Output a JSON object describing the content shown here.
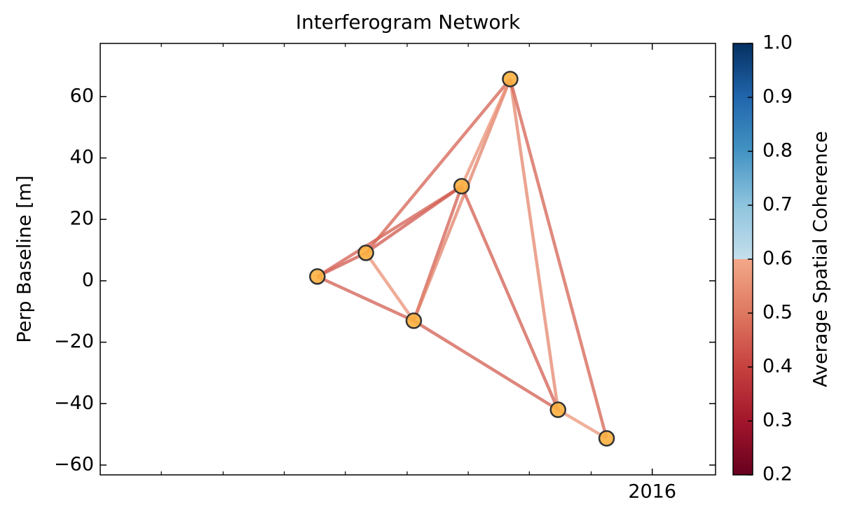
{
  "chart_data": {
    "type": "network",
    "title": "Interferogram Network",
    "ylabel": "Perp Baseline [m]",
    "colorbar_label": "Average Spatial Coherence",
    "nodes": {
      "x": [
        2015.545,
        2015.611,
        2015.676,
        2015.741,
        2015.807,
        2015.872,
        2015.938
      ],
      "y": [
        1.4,
        9.1,
        -13.0,
        30.8,
        65.7,
        -42.0,
        -51.3
      ],
      "color": "#fbb040",
      "edge_color": "#333333"
    },
    "edges": [
      {
        "source": 0,
        "target": 1,
        "coherence": 0.44
      },
      {
        "source": 0,
        "target": 3,
        "coherence": 0.45
      },
      {
        "source": 0,
        "target": 2,
        "coherence": 0.45
      },
      {
        "source": 1,
        "target": 2,
        "coherence": 0.55
      },
      {
        "source": 1,
        "target": 3,
        "coherence": 0.44
      },
      {
        "source": 1,
        "target": 4,
        "coherence": 0.46
      },
      {
        "source": 2,
        "target": 3,
        "coherence": 0.45
      },
      {
        "source": 2,
        "target": 4,
        "coherence": 0.52
      },
      {
        "source": 3,
        "target": 4,
        "coherence": 0.55
      },
      {
        "source": 2,
        "target": 5,
        "coherence": 0.45
      },
      {
        "source": 3,
        "target": 5,
        "coherence": 0.45
      },
      {
        "source": 4,
        "target": 5,
        "coherence": 0.53
      },
      {
        "source": 4,
        "target": 6,
        "coherence": 0.46
      },
      {
        "source": 5,
        "target": 6,
        "coherence": 0.56
      }
    ],
    "edge_alpha": 0.75,
    "xlim": [
      2015.25,
      2016.086
    ],
    "xticks": [
      {
        "value": 2016,
        "label": "2016"
      }
    ],
    "xminorticks": [
      2015.333,
      2015.417,
      2015.5,
      2015.583,
      2015.667,
      2015.75,
      2015.833,
      2015.917
    ],
    "ylim": [
      -63.2,
      77.3
    ],
    "yticks": [
      {
        "value": -60,
        "label": "−60"
      },
      {
        "value": -40,
        "label": "−40"
      },
      {
        "value": -20,
        "label": "−20"
      },
      0,
      20,
      40,
      60
    ],
    "clim": [
      0.2,
      1
    ],
    "cticks": [
      0.2,
      0.3,
      0.4,
      0.5,
      0.6,
      0.7,
      0.8,
      0.9,
      {
        "value": 1,
        "label": "1.0"
      }
    ],
    "colormap": [
      {
        "value": 0.2,
        "color": "#67001f"
      },
      {
        "value": 0.3,
        "color": "#a3162b"
      },
      {
        "value": 0.4,
        "color": "#c7413f"
      },
      {
        "value": 0.5,
        "color": "#de7860"
      },
      {
        "value": 0.6,
        "color": "#f3a889"
      },
      {
        "value": 0.6,
        "color": "#c5dfec"
      },
      {
        "value": 0.7,
        "color": "#8ec4de"
      },
      {
        "value": 0.8,
        "color": "#4393c3"
      },
      {
        "value": 0.9,
        "color": "#2166ac"
      },
      {
        "value": 1,
        "color": "#053061"
      }
    ]
  }
}
